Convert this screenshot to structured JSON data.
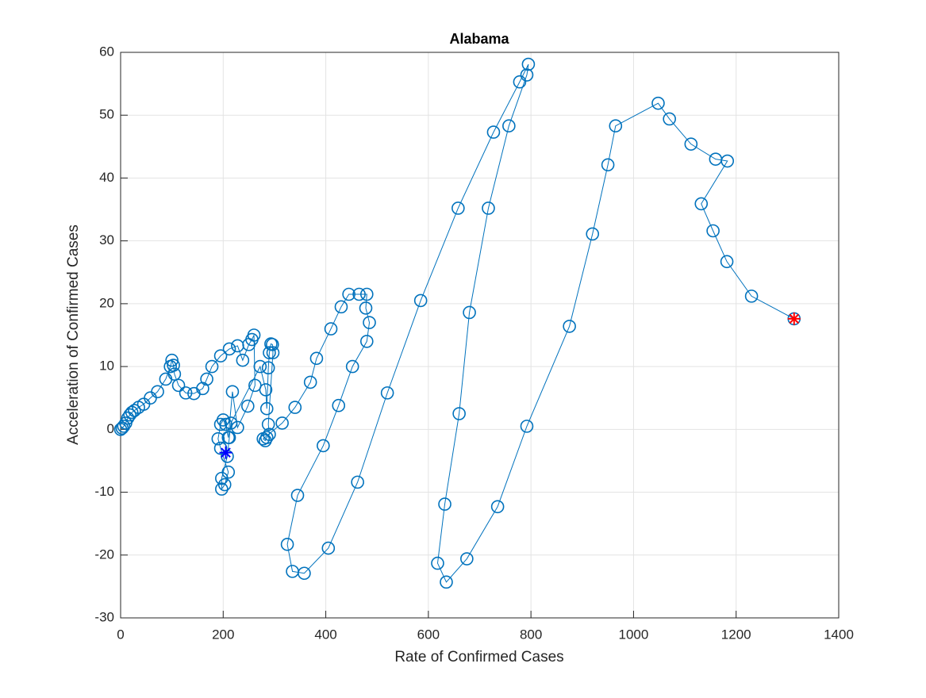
{
  "chart_data": {
    "type": "line",
    "title": "Alabama",
    "x_label": "Rate of Confirmed Cases",
    "y_label": "Acceleration of Confirmed Cases",
    "x": [
      0,
      3,
      6,
      10,
      14,
      18,
      22,
      27,
      35,
      45,
      58,
      72,
      88,
      97,
      100,
      103,
      105,
      113,
      127,
      143,
      160,
      168,
      178,
      195,
      212,
      228,
      238,
      250,
      256,
      260,
      262,
      248,
      228,
      218,
      210,
      205,
      200,
      195,
      190,
      195,
      210,
      203,
      197,
      197,
      208,
      212,
      215,
      272,
      283,
      285,
      288,
      290,
      293,
      296,
      297,
      288,
      290,
      285,
      282,
      278,
      315,
      340,
      370,
      382,
      410,
      430,
      445,
      465,
      480,
      478,
      485,
      480,
      452,
      425,
      395,
      345,
      325,
      335,
      358,
      405,
      462,
      520,
      585,
      658,
      727,
      778,
      795,
      792,
      757,
      717,
      680,
      660,
      632,
      618,
      635,
      675,
      735,
      792,
      875,
      920,
      950,
      965,
      1048,
      1070,
      1112,
      1160,
      1183,
      1132,
      1155,
      1182,
      1230,
      1313
    ],
    "series": [
      {
        "name": "trajectory",
        "color": "#0072bd",
        "values": [
          0,
          0.2,
          0.5,
          1,
          1.8,
          2.3,
          2.7,
          3,
          3.5,
          4,
          5,
          6,
          8,
          10,
          11,
          10.2,
          8.8,
          7,
          5.8,
          5.7,
          6.5,
          8,
          10,
          11.7,
          12.8,
          13.3,
          11,
          13.5,
          14.3,
          15,
          7,
          3.7,
          0.3,
          6,
          -1.3,
          0.8,
          1.5,
          0.8,
          -1.5,
          -3,
          -6.8,
          -8.8,
          -9.5,
          -7.8,
          -4.3,
          -1.3,
          1,
          10,
          6.3,
          3.3,
          9.8,
          12.2,
          13.6,
          13.5,
          12.2,
          0.8,
          -0.8,
          -1.3,
          -1.8,
          -1.5,
          1,
          3.5,
          7.5,
          11.3,
          16,
          19.5,
          21.5,
          21.5,
          21.5,
          19.3,
          17,
          14,
          10,
          3.8,
          -2.6,
          -10.5,
          -18.3,
          -22.6,
          -22.9,
          -18.9,
          -8.4,
          5.8,
          20.5,
          35.2,
          47.3,
          55.3,
          58.1,
          56.4,
          48.3,
          35.2,
          18.6,
          2.5,
          -11.9,
          -21.3,
          -24.3,
          -20.6,
          -12.3,
          0.5,
          16.4,
          31.1,
          42.1,
          48.3,
          51.9,
          49.4,
          45.4,
          43,
          42.7,
          35.9,
          31.6,
          26.7,
          21.2,
          17.6
        ]
      }
    ],
    "start_marker": {
      "x": 205,
      "y": -3.7,
      "color": "#0000ff"
    },
    "end_marker": {
      "x": 1313,
      "y": 17.6,
      "color": "#ff0000"
    },
    "xlim": [
      0,
      1400
    ],
    "xticks": [
      0,
      200,
      400,
      600,
      800,
      1000,
      1200,
      1400
    ],
    "ylim": [
      -30,
      60
    ],
    "yticks": [
      -30,
      -20,
      -10,
      0,
      10,
      20,
      30,
      40,
      50,
      60
    ],
    "grid": true
  }
}
